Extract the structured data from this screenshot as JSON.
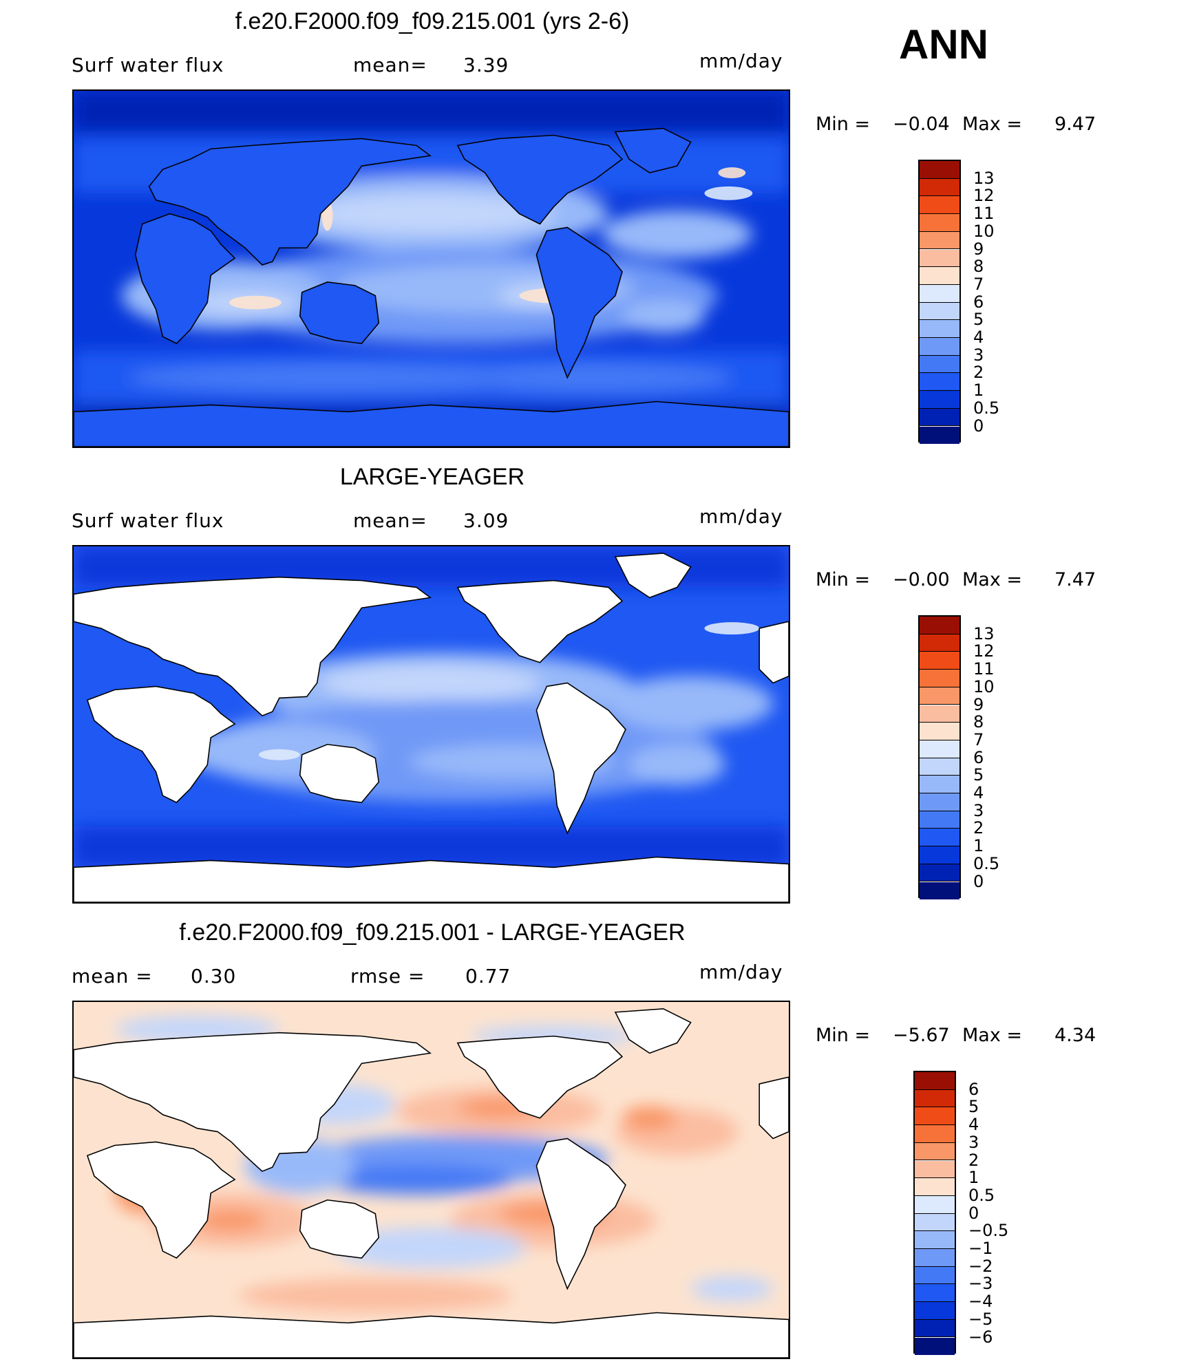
{
  "season": "ANN",
  "colors": {
    "full": [
      "#00107a",
      "#0022b4",
      "#0738db",
      "#1f58f2",
      "#4479f5",
      "#6f99f7",
      "#98b9f9",
      "#c2d6fb",
      "#dde9fc",
      "#fde3cf",
      "#fbbda0",
      "#f99768",
      "#f77238",
      "#f04c18",
      "#d22a06",
      "#9a0f04"
    ],
    "diff": [
      "#00107a",
      "#0022b4",
      "#0738db",
      "#1f58f2",
      "#4479f5",
      "#6f99f7",
      "#98b9f9",
      "#c2d6fb",
      "#dde9fc",
      "#fde3cf",
      "#fbbda0",
      "#f99768",
      "#f77238",
      "#f04c18",
      "#d22a06",
      "#9a0f04"
    ]
  },
  "panels": [
    {
      "title": "f.e20.F2000.f09_f09.215.001 (yrs 2-6)",
      "left_label": "Surf  water  flux",
      "mean_label": "mean=",
      "mean_value": "3.39",
      "units": "mm/day",
      "min_label": "Min  =",
      "min_value": "−0.04",
      "max_label": "Max  =",
      "max_value": "9.47",
      "colorbar_ticks": [
        "13",
        "12",
        "11",
        "10",
        "9",
        "8",
        "7",
        "6",
        "5",
        "4",
        "3",
        "2",
        "1",
        "0.5",
        "0"
      ],
      "scale": "full",
      "land_masked": false
    },
    {
      "title": "LARGE-YEAGER",
      "left_label": "Surf  water  flux",
      "mean_label": "mean=",
      "mean_value": "3.09",
      "units": "mm/day",
      "min_label": "Min  =",
      "min_value": "−0.00",
      "max_label": "Max  =",
      "max_value": "7.47",
      "colorbar_ticks": [
        "13",
        "12",
        "11",
        "10",
        "9",
        "8",
        "7",
        "6",
        "5",
        "4",
        "3",
        "2",
        "1",
        "0.5",
        "0"
      ],
      "scale": "full",
      "land_masked": true
    },
    {
      "title": "f.e20.F2000.f09_f09.215.001 - LARGE-YEAGER",
      "left_label": "mean  =",
      "mean_label": "rmse  =",
      "left_value": "0.30",
      "mean_value": "0.77",
      "units": "mm/day",
      "min_label": "Min  =",
      "min_value": "−5.67",
      "max_label": "Max  =",
      "max_value": "4.34",
      "colorbar_ticks": [
        "6",
        "5",
        "4",
        "3",
        "2",
        "1",
        "0.5",
        "0",
        "−0.5",
        "−1",
        "−2",
        "−3",
        "−4",
        "−5",
        "−6"
      ],
      "scale": "diff",
      "land_masked": true
    }
  ]
}
